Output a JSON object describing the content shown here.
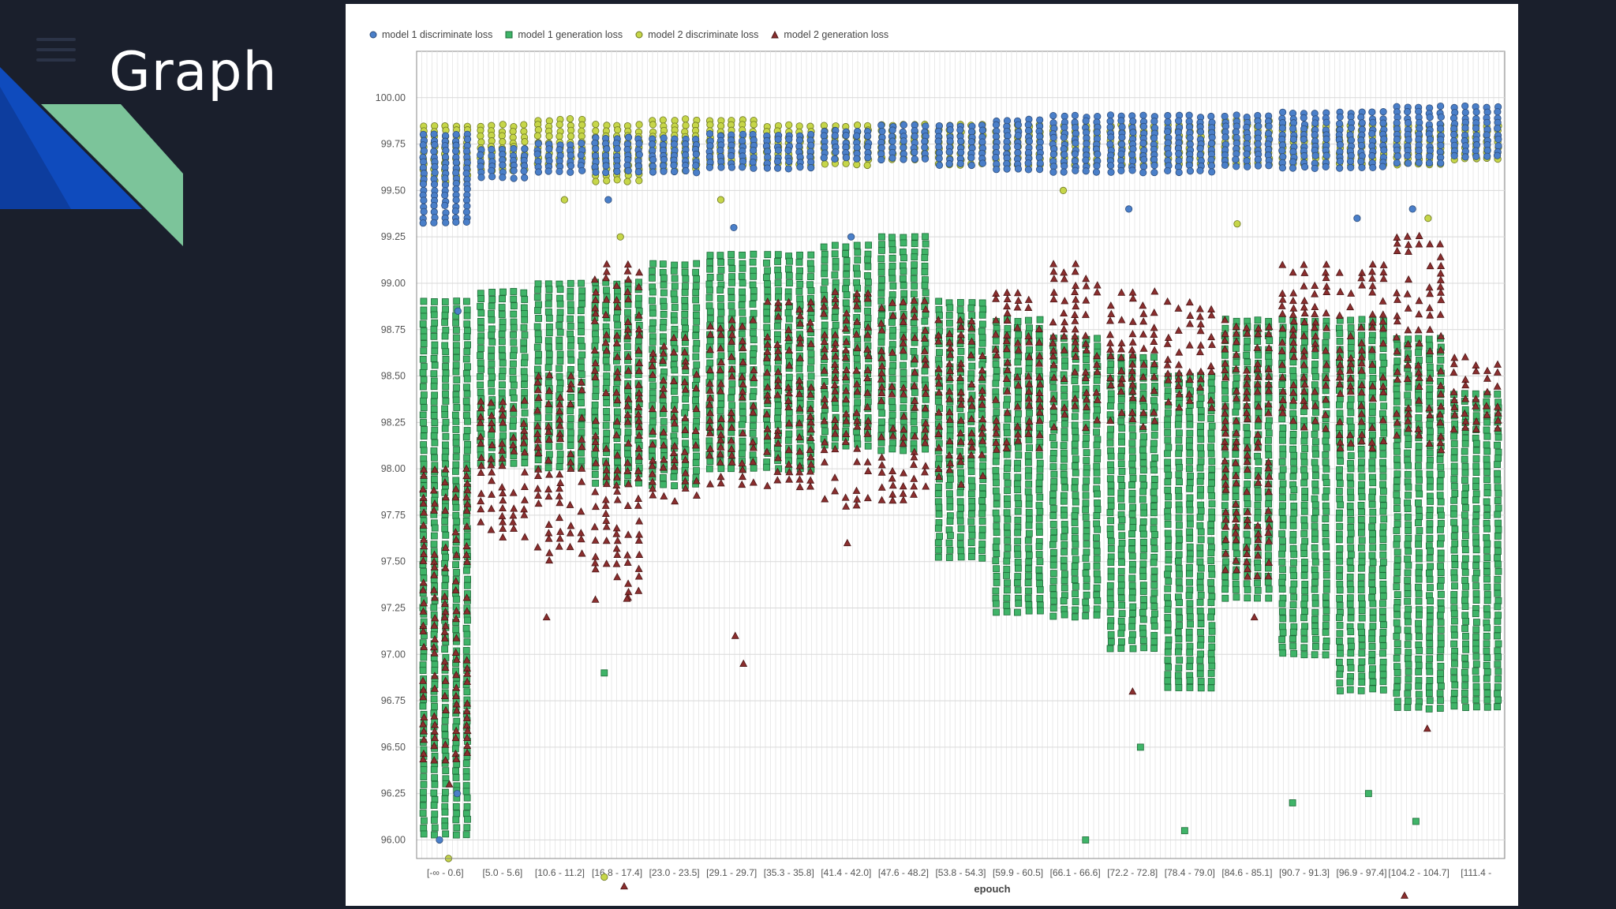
{
  "slide": {
    "title": "Graph"
  },
  "chart_data": {
    "type": "scatter",
    "title": "",
    "xlabel": "epouch",
    "ylabel": "",
    "ylim": [
      95.9,
      100.25
    ],
    "grid": true,
    "legend_position": "top-left",
    "y_ticks": [
      "96.00",
      "96.25",
      "96.50",
      "96.75",
      "97.00",
      "97.25",
      "97.50",
      "97.75",
      "98.00",
      "98.25",
      "98.50",
      "98.75",
      "99.00",
      "99.25",
      "99.50",
      "99.75",
      "100.00"
    ],
    "categories": [
      "[-∞ - 0.6]",
      "[5.0 - 5.6]",
      "[10.6 - 11.2]",
      "[16.8 - 17.4]",
      "[23.0 - 23.5]",
      "[29.1 - 29.7]",
      "[35.3 - 35.8]",
      "[41.4 - 42.0]",
      "[47.6 - 48.2]",
      "[53.8 - 54.3]",
      "[59.9 - 60.5]",
      "[66.1 - 66.6]",
      "[72.2 - 72.8]",
      "[78.4 - 79.0]",
      "[84.6 - 85.1]",
      "[90.7 - 91.3]",
      "[96.9 - 97.4]",
      "[104.2 - 104.7]",
      "[111.4 -"
    ],
    "series": [
      {
        "name": "model 1 discriminate loss",
        "color": "#4a7fc9",
        "marker": "circle",
        "ranges": [
          [
            99.3,
            99.8
          ],
          [
            99.55,
            99.72
          ],
          [
            99.58,
            99.75
          ],
          [
            99.6,
            99.78
          ],
          [
            99.6,
            99.78
          ],
          [
            99.62,
            99.8
          ],
          [
            99.62,
            99.8
          ],
          [
            99.65,
            99.82
          ],
          [
            99.65,
            99.85
          ],
          [
            99.62,
            99.85
          ],
          [
            99.6,
            99.88
          ],
          [
            99.6,
            99.9
          ],
          [
            99.6,
            99.9
          ],
          [
            99.6,
            99.9
          ],
          [
            99.62,
            99.9
          ],
          [
            99.6,
            99.92
          ],
          [
            99.62,
            99.92
          ],
          [
            99.65,
            99.95
          ],
          [
            99.68,
            99.95
          ]
        ],
        "outliers": [
          [
            0,
            96.0
          ],
          [
            0,
            96.25
          ],
          [
            0,
            98.85
          ],
          [
            3,
            99.45
          ],
          [
            5,
            99.3
          ],
          [
            7,
            99.25
          ],
          [
            12,
            99.4
          ],
          [
            16,
            99.35
          ],
          [
            17,
            99.4
          ]
        ]
      },
      {
        "name": "model 1 generation loss",
        "color": "#3fb468",
        "marker": "square",
        "ranges": [
          [
            96.0,
            98.9
          ],
          [
            98.0,
            98.95
          ],
          [
            98.0,
            99.0
          ],
          [
            97.9,
            99.0
          ],
          [
            97.9,
            99.1
          ],
          [
            98.0,
            99.15
          ],
          [
            98.0,
            99.15
          ],
          [
            98.1,
            99.2
          ],
          [
            98.1,
            99.25
          ],
          [
            97.5,
            98.9
          ],
          [
            97.2,
            98.8
          ],
          [
            97.2,
            98.7
          ],
          [
            97.0,
            98.6
          ],
          [
            96.8,
            98.5
          ],
          [
            97.3,
            98.8
          ],
          [
            97.0,
            98.8
          ],
          [
            96.8,
            98.8
          ],
          [
            96.7,
            98.7
          ],
          [
            96.7,
            98.4
          ]
        ],
        "outliers": [
          [
            3,
            96.9
          ],
          [
            11,
            96.0
          ],
          [
            12,
            96.5
          ],
          [
            13,
            96.05
          ],
          [
            15,
            96.2
          ],
          [
            16,
            96.25
          ],
          [
            17,
            96.1
          ]
        ]
      },
      {
        "name": "model 2  discriminate loss",
        "color": "#c6d649",
        "marker": "circle",
        "ranges": [
          [
            99.55,
            99.85
          ],
          [
            99.6,
            99.85
          ],
          [
            99.62,
            99.88
          ],
          [
            99.55,
            99.85
          ],
          [
            99.6,
            99.88
          ],
          [
            99.62,
            99.88
          ],
          [
            99.62,
            99.85
          ],
          [
            99.62,
            99.85
          ],
          [
            99.65,
            99.85
          ],
          [
            99.62,
            99.85
          ],
          [
            99.62,
            99.85
          ],
          [
            99.62,
            99.85
          ],
          [
            99.62,
            99.85
          ],
          [
            99.62,
            99.85
          ],
          [
            99.62,
            99.88
          ],
          [
            99.62,
            99.85
          ],
          [
            99.62,
            99.85
          ],
          [
            99.62,
            99.85
          ],
          [
            99.65,
            99.85
          ]
        ],
        "outliers": [
          [
            0,
            95.9
          ],
          [
            2,
            99.45
          ],
          [
            3,
            99.25
          ],
          [
            3,
            95.8
          ],
          [
            5,
            99.45
          ],
          [
            11,
            99.5
          ],
          [
            14,
            99.32
          ],
          [
            17,
            99.35
          ]
        ]
      },
      {
        "name": "model 2 generation loss",
        "color": "#8b2e2e",
        "marker": "triangle",
        "ranges": [
          [
            96.4,
            98.0
          ],
          [
            97.6,
            98.4
          ],
          [
            97.5,
            98.5
          ],
          [
            97.3,
            99.1
          ],
          [
            97.8,
            98.7
          ],
          [
            97.9,
            98.8
          ],
          [
            97.9,
            98.9
          ],
          [
            97.8,
            98.95
          ],
          [
            97.8,
            98.9
          ],
          [
            97.9,
            98.8
          ],
          [
            98.1,
            98.95
          ],
          [
            98.2,
            99.1
          ],
          [
            98.2,
            98.95
          ],
          [
            98.3,
            98.9
          ],
          [
            97.4,
            98.8
          ],
          [
            98.2,
            99.1
          ],
          [
            98.1,
            99.1
          ],
          [
            98.1,
            99.25
          ],
          [
            98.2,
            98.6
          ]
        ],
        "outliers": [
          [
            0,
            96.3
          ],
          [
            2,
            97.2
          ],
          [
            3,
            97.3
          ],
          [
            3,
            95.75
          ],
          [
            5,
            96.95
          ],
          [
            5,
            97.1
          ],
          [
            7,
            97.6
          ],
          [
            12,
            96.8
          ],
          [
            14,
            97.2
          ],
          [
            17,
            95.7
          ],
          [
            17,
            96.6
          ]
        ]
      }
    ]
  }
}
